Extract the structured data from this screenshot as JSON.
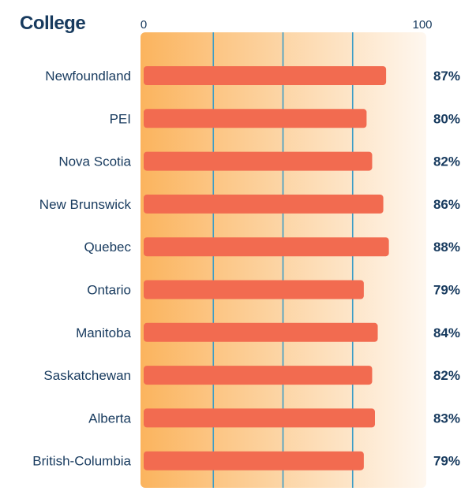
{
  "chart_data": {
    "type": "bar",
    "orientation": "horizontal",
    "title": "College",
    "xlim": [
      0,
      100
    ],
    "x_tick_labels": [
      "0",
      "100"
    ],
    "gridlines": [
      25,
      50,
      75
    ],
    "categories": [
      "Newfoundland",
      "PEI",
      "Nova Scotia",
      "New Brunswick",
      "Quebec",
      "Ontario",
      "Manitoba",
      "Saskatchewan",
      "Alberta",
      "British-Columbia"
    ],
    "values": [
      87,
      80,
      82,
      86,
      88,
      79,
      84,
      82,
      83,
      79
    ],
    "value_labels": [
      "87%",
      "80%",
      "82%",
      "86%",
      "88%",
      "79%",
      "84%",
      "82%",
      "83%",
      "79%"
    ],
    "colors": {
      "bar": "#f26b50",
      "gradient_start": "#fbb45e",
      "gradient_end": "#fef7ef",
      "gridline": "#3b9cc7",
      "text": "#173a5e"
    }
  }
}
